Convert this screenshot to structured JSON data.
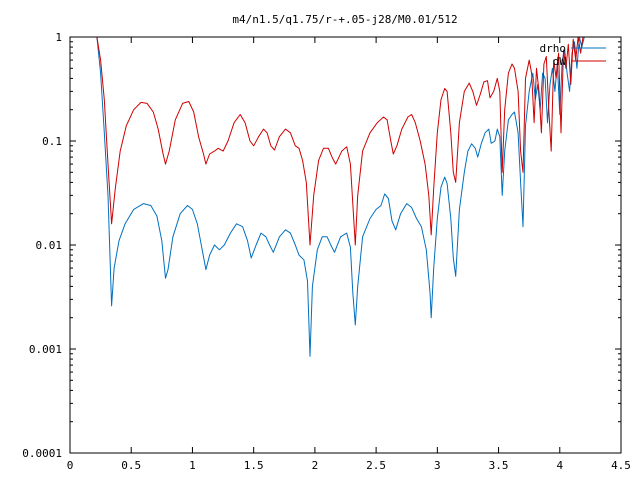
{
  "chart_data": {
    "type": "line",
    "title": "m4/n1.5/q1.75/r-+.05-j28/M0.01/512",
    "xlabel": "",
    "ylabel": "",
    "xlim": [
      0,
      4.5
    ],
    "ylim": [
      0.0001,
      1
    ],
    "yscale": "log",
    "grid": false,
    "legend_position": "top-right",
    "x_ticks": [
      0,
      0.5,
      1,
      1.5,
      2,
      2.5,
      3,
      3.5,
      4,
      4.5
    ],
    "x_tick_labels": [
      "0",
      "0.5",
      "1",
      "1.5",
      "2",
      "2.5",
      "3",
      "3.5",
      "4",
      "4.5"
    ],
    "y_ticks": [
      0.0001,
      0.001,
      0.01,
      0.1,
      1
    ],
    "y_tick_labels": [
      "0.0001",
      "0.001",
      "0.01",
      "0.1",
      "1"
    ],
    "series": [
      {
        "name": "drho",
        "color": "#0070c0",
        "points": [
          [
            0.22,
            1.0
          ],
          [
            0.25,
            0.45
          ],
          [
            0.28,
            0.12
          ],
          [
            0.31,
            0.03
          ],
          [
            0.34,
            0.0026
          ],
          [
            0.36,
            0.006
          ],
          [
            0.4,
            0.011
          ],
          [
            0.45,
            0.016
          ],
          [
            0.52,
            0.022
          ],
          [
            0.6,
            0.025
          ],
          [
            0.66,
            0.024
          ],
          [
            0.71,
            0.019
          ],
          [
            0.75,
            0.011
          ],
          [
            0.78,
            0.0048
          ],
          [
            0.8,
            0.0058
          ],
          [
            0.84,
            0.012
          ],
          [
            0.9,
            0.02
          ],
          [
            0.96,
            0.024
          ],
          [
            1.0,
            0.022
          ],
          [
            1.04,
            0.016
          ],
          [
            1.08,
            0.009
          ],
          [
            1.11,
            0.0058
          ],
          [
            1.14,
            0.008
          ],
          [
            1.18,
            0.01
          ],
          [
            1.22,
            0.009
          ],
          [
            1.26,
            0.01
          ],
          [
            1.31,
            0.013
          ],
          [
            1.36,
            0.016
          ],
          [
            1.41,
            0.015
          ],
          [
            1.45,
            0.011
          ],
          [
            1.48,
            0.0075
          ],
          [
            1.52,
            0.01
          ],
          [
            1.56,
            0.013
          ],
          [
            1.6,
            0.012
          ],
          [
            1.63,
            0.01
          ],
          [
            1.66,
            0.0085
          ],
          [
            1.71,
            0.012
          ],
          [
            1.76,
            0.014
          ],
          [
            1.8,
            0.013
          ],
          [
            1.84,
            0.01
          ],
          [
            1.87,
            0.008
          ],
          [
            1.91,
            0.0072
          ],
          [
            1.94,
            0.0045
          ],
          [
            1.96,
            0.00085
          ],
          [
            1.98,
            0.004
          ],
          [
            2.02,
            0.009
          ],
          [
            2.06,
            0.012
          ],
          [
            2.1,
            0.012
          ],
          [
            2.13,
            0.01
          ],
          [
            2.16,
            0.0085
          ],
          [
            2.21,
            0.012
          ],
          [
            2.26,
            0.013
          ],
          [
            2.29,
            0.0095
          ],
          [
            2.31,
            0.0035
          ],
          [
            2.33,
            0.0017
          ],
          [
            2.35,
            0.004
          ],
          [
            2.39,
            0.012
          ],
          [
            2.45,
            0.018
          ],
          [
            2.5,
            0.022
          ],
          [
            2.54,
            0.024
          ],
          [
            2.57,
            0.031
          ],
          [
            2.6,
            0.028
          ],
          [
            2.63,
            0.017
          ],
          [
            2.66,
            0.014
          ],
          [
            2.7,
            0.02
          ],
          [
            2.75,
            0.025
          ],
          [
            2.79,
            0.023
          ],
          [
            2.83,
            0.018
          ],
          [
            2.87,
            0.015
          ],
          [
            2.91,
            0.009
          ],
          [
            2.94,
            0.0035
          ],
          [
            2.95,
            0.002
          ],
          [
            2.97,
            0.006
          ],
          [
            3.0,
            0.018
          ],
          [
            3.03,
            0.036
          ],
          [
            3.06,
            0.045
          ],
          [
            3.08,
            0.039
          ],
          [
            3.11,
            0.018
          ],
          [
            3.13,
            0.0075
          ],
          [
            3.15,
            0.005
          ],
          [
            3.18,
            0.022
          ],
          [
            3.22,
            0.05
          ],
          [
            3.25,
            0.08
          ],
          [
            3.28,
            0.094
          ],
          [
            3.31,
            0.085
          ],
          [
            3.33,
            0.07
          ],
          [
            3.36,
            0.095
          ],
          [
            3.39,
            0.12
          ],
          [
            3.42,
            0.13
          ],
          [
            3.44,
            0.095
          ],
          [
            3.47,
            0.1
          ],
          [
            3.49,
            0.13
          ],
          [
            3.51,
            0.11
          ],
          [
            3.53,
            0.03
          ],
          [
            3.55,
            0.08
          ],
          [
            3.58,
            0.16
          ],
          [
            3.61,
            0.18
          ],
          [
            3.63,
            0.19
          ],
          [
            3.66,
            0.12
          ],
          [
            3.68,
            0.04
          ],
          [
            3.7,
            0.015
          ],
          [
            3.72,
            0.14
          ],
          [
            3.75,
            0.3
          ],
          [
            3.78,
            0.45
          ],
          [
            3.8,
            0.25
          ],
          [
            3.82,
            0.35
          ],
          [
            3.84,
            0.2
          ],
          [
            3.86,
            0.45
          ],
          [
            3.88,
            0.4
          ],
          [
            3.9,
            0.15
          ],
          [
            3.92,
            0.35
          ],
          [
            3.94,
            0.5
          ],
          [
            3.96,
            0.3
          ],
          [
            3.98,
            0.55
          ],
          [
            4.0,
            0.18
          ],
          [
            4.02,
            0.6
          ],
          [
            4.04,
            0.75
          ],
          [
            4.06,
            0.45
          ],
          [
            4.08,
            0.3
          ],
          [
            4.1,
            0.7
          ],
          [
            4.12,
            0.9
          ],
          [
            4.14,
            0.5
          ],
          [
            4.16,
            1.0
          ],
          [
            4.18,
            0.8
          ],
          [
            4.2,
            1.0
          ]
        ]
      },
      {
        "name": "dW",
        "color": "#d00000",
        "points": [
          [
            0.22,
            1.0
          ],
          [
            0.25,
            0.6
          ],
          [
            0.28,
            0.25
          ],
          [
            0.31,
            0.06
          ],
          [
            0.34,
            0.016
          ],
          [
            0.37,
            0.035
          ],
          [
            0.41,
            0.08
          ],
          [
            0.46,
            0.14
          ],
          [
            0.52,
            0.2
          ],
          [
            0.58,
            0.235
          ],
          [
            0.63,
            0.23
          ],
          [
            0.68,
            0.19
          ],
          [
            0.72,
            0.13
          ],
          [
            0.76,
            0.075
          ],
          [
            0.78,
            0.06
          ],
          [
            0.81,
            0.08
          ],
          [
            0.86,
            0.16
          ],
          [
            0.92,
            0.23
          ],
          [
            0.97,
            0.24
          ],
          [
            1.01,
            0.19
          ],
          [
            1.05,
            0.11
          ],
          [
            1.09,
            0.075
          ],
          [
            1.11,
            0.06
          ],
          [
            1.14,
            0.075
          ],
          [
            1.18,
            0.08
          ],
          [
            1.21,
            0.085
          ],
          [
            1.25,
            0.08
          ],
          [
            1.29,
            0.1
          ],
          [
            1.34,
            0.15
          ],
          [
            1.39,
            0.18
          ],
          [
            1.43,
            0.15
          ],
          [
            1.47,
            0.1
          ],
          [
            1.5,
            0.09
          ],
          [
            1.54,
            0.11
          ],
          [
            1.58,
            0.13
          ],
          [
            1.61,
            0.12
          ],
          [
            1.64,
            0.09
          ],
          [
            1.67,
            0.082
          ],
          [
            1.71,
            0.11
          ],
          [
            1.76,
            0.13
          ],
          [
            1.8,
            0.12
          ],
          [
            1.84,
            0.09
          ],
          [
            1.87,
            0.085
          ],
          [
            1.9,
            0.065
          ],
          [
            1.93,
            0.04
          ],
          [
            1.96,
            0.01
          ],
          [
            1.99,
            0.03
          ],
          [
            2.03,
            0.065
          ],
          [
            2.07,
            0.085
          ],
          [
            2.11,
            0.085
          ],
          [
            2.14,
            0.07
          ],
          [
            2.17,
            0.06
          ],
          [
            2.22,
            0.08
          ],
          [
            2.26,
            0.088
          ],
          [
            2.29,
            0.06
          ],
          [
            2.31,
            0.025
          ],
          [
            2.33,
            0.01
          ],
          [
            2.35,
            0.03
          ],
          [
            2.39,
            0.08
          ],
          [
            2.45,
            0.12
          ],
          [
            2.51,
            0.15
          ],
          [
            2.56,
            0.17
          ],
          [
            2.59,
            0.16
          ],
          [
            2.62,
            0.1
          ],
          [
            2.64,
            0.075
          ],
          [
            2.67,
            0.09
          ],
          [
            2.71,
            0.13
          ],
          [
            2.76,
            0.17
          ],
          [
            2.79,
            0.18
          ],
          [
            2.82,
            0.15
          ],
          [
            2.86,
            0.1
          ],
          [
            2.9,
            0.06
          ],
          [
            2.93,
            0.03
          ],
          [
            2.95,
            0.0125
          ],
          [
            2.97,
            0.035
          ],
          [
            3.0,
            0.12
          ],
          [
            3.03,
            0.25
          ],
          [
            3.06,
            0.32
          ],
          [
            3.08,
            0.3
          ],
          [
            3.11,
            0.12
          ],
          [
            3.13,
            0.05
          ],
          [
            3.15,
            0.04
          ],
          [
            3.18,
            0.15
          ],
          [
            3.22,
            0.3
          ],
          [
            3.26,
            0.36
          ],
          [
            3.29,
            0.3
          ],
          [
            3.32,
            0.22
          ],
          [
            3.35,
            0.28
          ],
          [
            3.38,
            0.37
          ],
          [
            3.41,
            0.38
          ],
          [
            3.43,
            0.26
          ],
          [
            3.46,
            0.3
          ],
          [
            3.49,
            0.4
          ],
          [
            3.51,
            0.3
          ],
          [
            3.53,
            0.05
          ],
          [
            3.55,
            0.2
          ],
          [
            3.58,
            0.45
          ],
          [
            3.61,
            0.55
          ],
          [
            3.63,
            0.5
          ],
          [
            3.66,
            0.3
          ],
          [
            3.68,
            0.08
          ],
          [
            3.7,
            0.05
          ],
          [
            3.72,
            0.4
          ],
          [
            3.75,
            0.6
          ],
          [
            3.77,
            0.45
          ],
          [
            3.79,
            0.15
          ],
          [
            3.81,
            0.5
          ],
          [
            3.83,
            0.3
          ],
          [
            3.85,
            0.12
          ],
          [
            3.87,
            0.55
          ],
          [
            3.89,
            0.65
          ],
          [
            3.91,
            0.2
          ],
          [
            3.93,
            0.08
          ],
          [
            3.95,
            0.6
          ],
          [
            3.97,
            0.4
          ],
          [
            3.99,
            0.7
          ],
          [
            4.01,
            0.12
          ],
          [
            4.03,
            0.75
          ],
          [
            4.05,
            0.5
          ],
          [
            4.07,
            0.85
          ],
          [
            4.09,
            0.35
          ],
          [
            4.11,
            0.95
          ],
          [
            4.13,
            0.6
          ],
          [
            4.15,
            1.0
          ],
          [
            4.17,
            0.7
          ],
          [
            4.19,
            1.0
          ]
        ]
      }
    ]
  }
}
